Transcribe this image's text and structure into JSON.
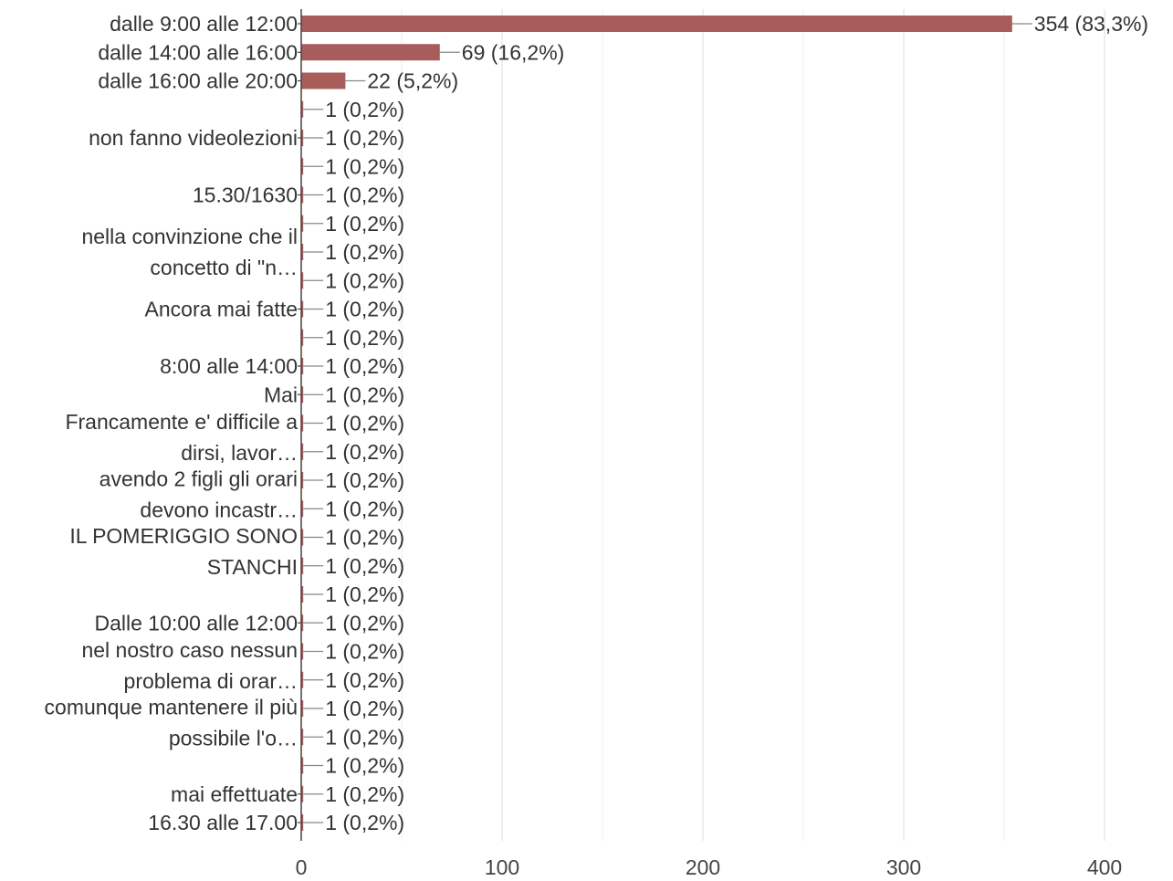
{
  "chart_data": {
    "type": "bar",
    "orientation": "horizontal",
    "xlim": [
      0,
      400
    ],
    "x_ticks": [
      0,
      100,
      200,
      300,
      400
    ],
    "grid": true,
    "legend": "none",
    "bar_color": "#a85d5b",
    "bars": [
      {
        "value": 354,
        "label": "354 (83,3%)"
      },
      {
        "value": 69,
        "label": "69 (16,2%)"
      },
      {
        "value": 22,
        "label": "22 (5,2%)"
      },
      {
        "value": 1,
        "label": "1 (0,2%)"
      },
      {
        "value": 1,
        "label": "1 (0,2%)"
      },
      {
        "value": 1,
        "label": "1 (0,2%)"
      },
      {
        "value": 1,
        "label": "1 (0,2%)"
      },
      {
        "value": 1,
        "label": "1 (0,2%)"
      },
      {
        "value": 1,
        "label": "1 (0,2%)"
      },
      {
        "value": 1,
        "label": "1 (0,2%)"
      },
      {
        "value": 1,
        "label": "1 (0,2%)"
      },
      {
        "value": 1,
        "label": "1 (0,2%)"
      },
      {
        "value": 1,
        "label": "1 (0,2%)"
      },
      {
        "value": 1,
        "label": "1 (0,2%)"
      },
      {
        "value": 1,
        "label": "1 (0,2%)"
      },
      {
        "value": 1,
        "label": "1 (0,2%)"
      },
      {
        "value": 1,
        "label": "1 (0,2%)"
      },
      {
        "value": 1,
        "label": "1 (0,2%)"
      },
      {
        "value": 1,
        "label": "1 (0,2%)"
      },
      {
        "value": 1,
        "label": "1 (0,2%)"
      },
      {
        "value": 1,
        "label": "1 (0,2%)"
      },
      {
        "value": 1,
        "label": "1 (0,2%)"
      },
      {
        "value": 1,
        "label": "1 (0,2%)"
      },
      {
        "value": 1,
        "label": "1 (0,2%)"
      },
      {
        "value": 1,
        "label": "1 (0,2%)"
      },
      {
        "value": 1,
        "label": "1 (0,2%)"
      },
      {
        "value": 1,
        "label": "1 (0,2%)"
      },
      {
        "value": 1,
        "label": "1 (0,2%)"
      },
      {
        "value": 1,
        "label": "1 (0,2%)"
      }
    ],
    "category_labels": [
      {
        "lines": [
          "dalle 9:00 alle 12:00"
        ],
        "rows": [
          0
        ]
      },
      {
        "lines": [
          "dalle 14:00 alle 16:00"
        ],
        "rows": [
          1
        ]
      },
      {
        "lines": [
          "dalle 16:00 alle 20:00"
        ],
        "rows": [
          2
        ]
      },
      {
        "lines": [
          "non fanno videolezioni"
        ],
        "rows": [
          4
        ]
      },
      {
        "lines": [
          "15.30/1630"
        ],
        "rows": [
          6
        ]
      },
      {
        "lines": [
          "nella convinzione che il",
          "concetto di \"n…"
        ],
        "rows": [
          7,
          9
        ]
      },
      {
        "lines": [
          "Ancora mai fatte"
        ],
        "rows": [
          10
        ]
      },
      {
        "lines": [
          "8:00 alle 14:00"
        ],
        "rows": [
          12
        ]
      },
      {
        "lines": [
          "Mai"
        ],
        "rows": [
          13
        ]
      },
      {
        "lines": [
          "Francamente e' difficile a",
          "dirsi, lavor…"
        ],
        "rows": [
          14,
          15
        ]
      },
      {
        "lines": [
          "avendo 2 figli gli orari",
          "devono incastr…"
        ],
        "rows": [
          16,
          17
        ]
      },
      {
        "lines": [
          "IL POMERIGGIO SONO",
          "STANCHI"
        ],
        "rows": [
          18,
          19
        ]
      },
      {
        "lines": [
          "Dalle 10:00 alle 12:00"
        ],
        "rows": [
          21
        ]
      },
      {
        "lines": [
          "nel nostro caso nessun",
          "problema di orar…"
        ],
        "rows": [
          22,
          23
        ]
      },
      {
        "lines": [
          "comunque mantenere il più",
          "possibile l'o…"
        ],
        "rows": [
          24,
          25
        ]
      },
      {
        "lines": [
          "mai effettuate"
        ],
        "rows": [
          27
        ]
      },
      {
        "lines": [
          "16.30 alle 17.00"
        ],
        "rows": [
          28
        ]
      }
    ]
  }
}
